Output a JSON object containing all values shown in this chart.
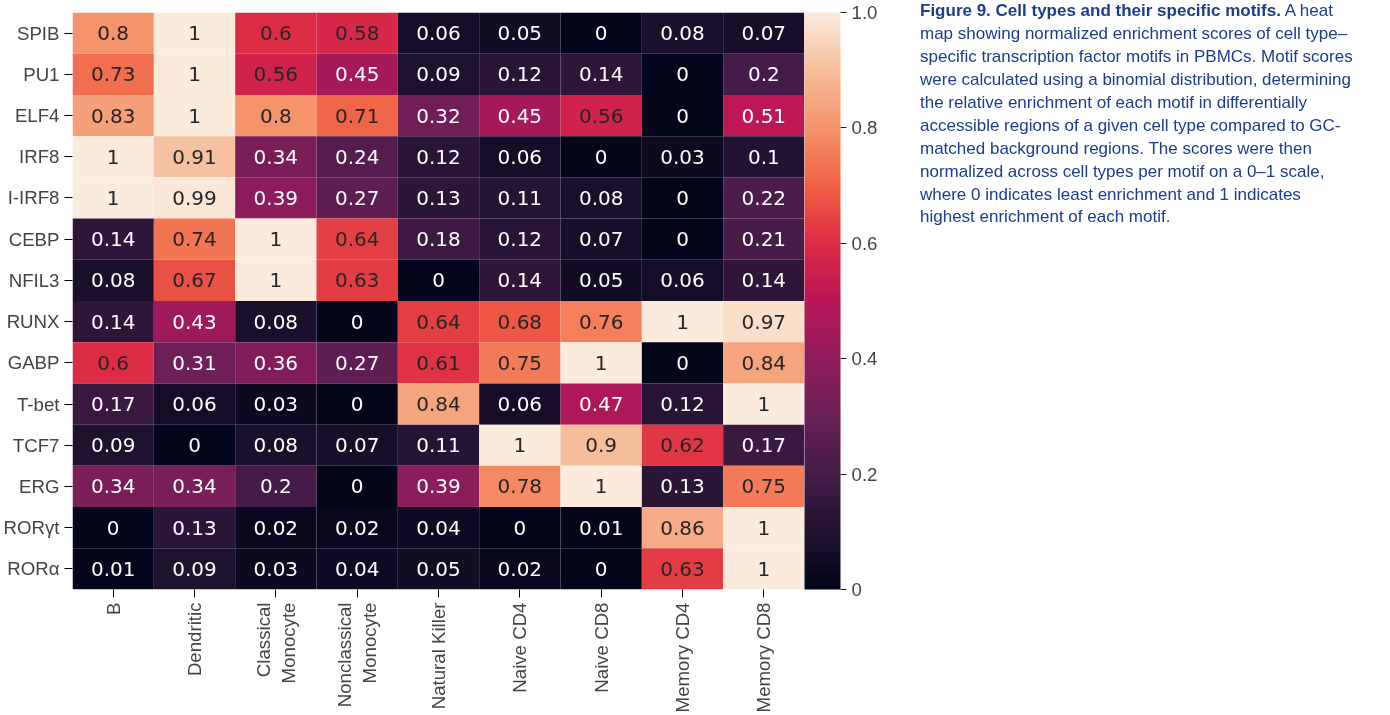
{
  "chart_data": {
    "type": "heatmap",
    "title": "Figure 9. Cell types and their specific motifs.",
    "subtitle": "A heat map showing normalized enrichment scores of cell type–specific transcription factor motifs in PBMCs. Motif scores were calculated using a binomial distribution, determining the relative enrichment of each motif in differentially accessible regions of a given cell type compared to GC-matched background regions. The scores were then normalized across cell types per motif on a 0–1 scale, where 0 indicates least enrichment and 1 indicates highest enrichment of each motif.",
    "categories": [
      "B",
      "Dendritic",
      "Classical\nMonocyte",
      "Nonclassical\nMonocyte",
      "Natural Killer",
      "Naive CD4",
      "Naive CD8",
      "Memory CD4",
      "Memory CD8"
    ],
    "y_categories": [
      "SPIB",
      "PU1",
      "ELF4",
      "IRF8",
      "I-IRF8",
      "CEBP",
      "NFIL3",
      "RUNX",
      "GABP",
      "T-bet",
      "TCF7",
      "ERG",
      "RORγt",
      "RORα"
    ],
    "cells": [
      [
        0.8,
        1,
        0.6,
        0.58,
        0.06,
        0.05,
        0,
        0.08,
        0.07
      ],
      [
        0.73,
        1,
        0.56,
        0.45,
        0.09,
        0.12,
        0.14,
        0,
        0.2
      ],
      [
        0.83,
        1,
        0.8,
        0.71,
        0.32,
        0.45,
        0.56,
        0,
        0.51
      ],
      [
        1,
        0.91,
        0.34,
        0.24,
        0.12,
        0.06,
        0,
        0.03,
        0.1
      ],
      [
        1,
        0.99,
        0.39,
        0.27,
        0.13,
        0.11,
        0.08,
        0,
        0.22
      ],
      [
        0.14,
        0.74,
        1,
        0.64,
        0.18,
        0.12,
        0.07,
        0,
        0.21
      ],
      [
        0.08,
        0.67,
        1,
        0.63,
        0,
        0.14,
        0.05,
        0.06,
        0.14
      ],
      [
        0.14,
        0.43,
        0.08,
        0,
        0.64,
        0.68,
        0.76,
        1,
        0.97
      ],
      [
        0.6,
        0.31,
        0.36,
        0.27,
        0.61,
        0.75,
        1,
        0,
        0.84
      ],
      [
        0.17,
        0.06,
        0.03,
        0,
        0.84,
        0.06,
        0.47,
        0.12,
        1
      ],
      [
        0.09,
        0,
        0.08,
        0.07,
        0.11,
        1,
        0.9,
        0.62,
        0.17
      ],
      [
        0.34,
        0.34,
        0.2,
        0,
        0.39,
        0.78,
        1,
        0.13,
        0.75
      ],
      [
        0,
        0.13,
        0.02,
        0.02,
        0.04,
        0,
        0.01,
        0.86,
        1
      ],
      [
        0.01,
        0.09,
        0.03,
        0.04,
        0.05,
        0.02,
        0,
        0.63,
        1
      ]
    ],
    "data_labels": true,
    "clim": [
      0,
      1
    ],
    "cticks": [
      0,
      0.2,
      0.4,
      0.6,
      0.8,
      {
        "value": 1,
        "label": "1.0"
      }
    ]
  }
}
